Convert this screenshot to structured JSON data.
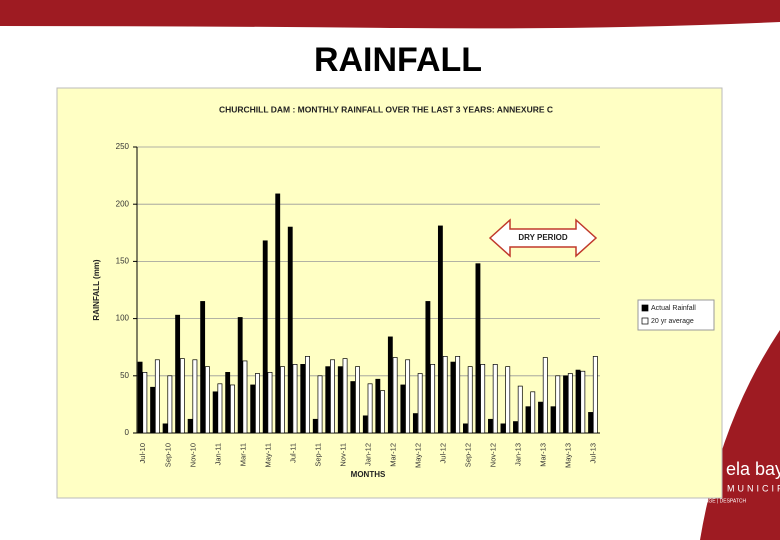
{
  "slide": {
    "title": "RAINFALL"
  },
  "logo": {
    "name": "ela bay",
    "line": "MUNICIPALITY",
    "places": "PORT ELIZABETH | UITENHAGE | DESPATCH"
  },
  "chart_data": {
    "type": "bar",
    "title": "CHURCHILL DAM : MONTHLY RAINFALL OVER THE LAST 3 YEARS:  ANNEXURE C",
    "x_label": "MONTHS",
    "y_label": "RAINFALL (mm)",
    "categories": [
      "Jul-10",
      null,
      "Sep-10",
      null,
      "Nov-10",
      null,
      "Jan-11",
      null,
      "Mar-11",
      null,
      "May-11",
      null,
      "Jul-11",
      null,
      "Sep-11",
      null,
      "Nov-11",
      null,
      "Jan-12",
      null,
      "Mar-12",
      null,
      "May-12",
      null,
      "Jul-12",
      null,
      "Sep-12",
      null,
      "Nov-12",
      null,
      "Jan-13",
      null,
      "Mar-13",
      null,
      "May-13",
      null,
      "Jul-13"
    ],
    "series": [
      {
        "name": "Actual Rainfall",
        "color": "#000000",
        "values": [
          62,
          40,
          8,
          103,
          12,
          115,
          36,
          53,
          101,
          42,
          168,
          209,
          180,
          60,
          12,
          58,
          58,
          45,
          15,
          47,
          84,
          42,
          17,
          115,
          181,
          62,
          8,
          148,
          12,
          8,
          10,
          23,
          27,
          23,
          50,
          55,
          18
        ]
      },
      {
        "name": "20 yr average",
        "color": "#ffffff",
        "values": [
          53,
          64,
          50,
          65,
          64,
          58,
          43,
          42,
          63,
          52,
          53,
          58,
          60,
          67,
          50,
          64,
          65,
          58,
          43,
          37,
          66,
          64,
          52,
          60,
          67,
          67,
          58,
          60,
          60,
          58,
          41,
          36,
          66,
          50,
          52,
          54,
          67
        ]
      }
    ],
    "ylim": [
      0,
      250
    ],
    "yticks": [
      0,
      50,
      100,
      150,
      200,
      250
    ],
    "grid": true,
    "legend": "right",
    "annotation": "DRY PERIOD"
  }
}
